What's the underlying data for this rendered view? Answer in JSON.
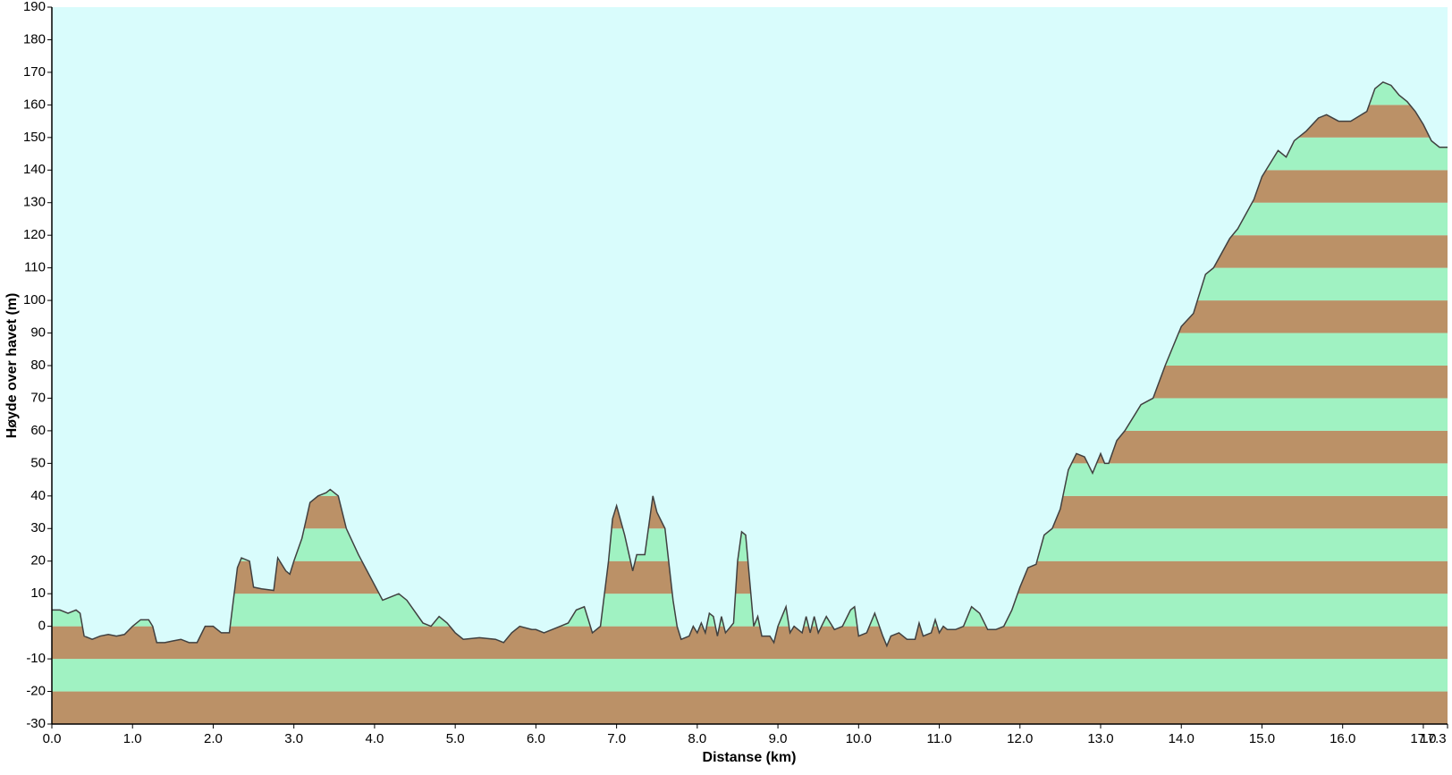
{
  "chart_data": {
    "type": "area",
    "xlabel": "Distanse   (km)",
    "ylabel": "Høyde over havet (m)",
    "background": "#d9fcfc",
    "band_colors": [
      "#bb9167",
      "#a0f2c2"
    ],
    "line_color": "#404040",
    "x": [
      0.0,
      0.1,
      0.2,
      0.3,
      0.35,
      0.4,
      0.5,
      0.6,
      0.7,
      0.8,
      0.9,
      1.0,
      1.1,
      1.2,
      1.25,
      1.3,
      1.4,
      1.5,
      1.6,
      1.7,
      1.8,
      1.9,
      2.0,
      2.1,
      2.2,
      2.3,
      2.35,
      2.45,
      2.5,
      2.6,
      2.75,
      2.8,
      2.9,
      2.95,
      3.0,
      3.1,
      3.2,
      3.3,
      3.4,
      3.45,
      3.55,
      3.65,
      3.8,
      3.95,
      4.1,
      4.3,
      4.4,
      4.6,
      4.7,
      4.8,
      4.9,
      5.0,
      5.1,
      5.3,
      5.5,
      5.6,
      5.7,
      5.8,
      5.95,
      6.0,
      6.1,
      6.2,
      6.3,
      6.4,
      6.5,
      6.6,
      6.7,
      6.8,
      6.9,
      6.95,
      7.0,
      7.1,
      7.2,
      7.25,
      7.35,
      7.45,
      7.5,
      7.6,
      7.7,
      7.75,
      7.8,
      7.9,
      7.95,
      8.0,
      8.05,
      8.1,
      8.15,
      8.2,
      8.25,
      8.3,
      8.35,
      8.45,
      8.5,
      8.55,
      8.6,
      8.7,
      8.75,
      8.8,
      8.9,
      8.95,
      9.0,
      9.1,
      9.15,
      9.2,
      9.3,
      9.35,
      9.4,
      9.45,
      9.5,
      9.6,
      9.7,
      9.8,
      9.9,
      9.95,
      10.0,
      10.1,
      10.2,
      10.3,
      10.35,
      10.4,
      10.5,
      10.6,
      10.7,
      10.75,
      10.8,
      10.9,
      10.95,
      11.0,
      11.05,
      11.1,
      11.2,
      11.3,
      11.4,
      11.5,
      11.6,
      11.7,
      11.8,
      11.9,
      12.0,
      12.1,
      12.2,
      12.3,
      12.4,
      12.5,
      12.6,
      12.7,
      12.8,
      12.9,
      13.0,
      13.05,
      13.1,
      13.2,
      13.3,
      13.5,
      13.65,
      13.8,
      13.9,
      14.0,
      14.15,
      14.3,
      14.4,
      14.6,
      14.7,
      14.9,
      15.0,
      15.1,
      15.2,
      15.3,
      15.4,
      15.55,
      15.7,
      15.8,
      15.95,
      16.1,
      16.3,
      16.4,
      16.5,
      16.6,
      16.7,
      16.8,
      16.9,
      17.0,
      17.1,
      17.2,
      17.3
    ],
    "series": [
      {
        "name": "Høyde",
        "values": [
          5,
          5,
          4,
          5,
          4,
          -3,
          -4,
          -3,
          -2.5,
          -3,
          -2.5,
          0,
          2,
          2,
          0,
          -5,
          -5,
          -4.5,
          -4,
          -5,
          -5,
          0,
          0,
          -2,
          -2,
          18,
          21,
          20,
          12,
          11.5,
          11,
          21,
          17,
          16,
          20,
          27,
          38,
          40,
          41,
          42,
          40,
          30,
          22,
          15,
          8,
          10,
          8,
          1,
          0,
          3,
          1,
          -2,
          -4,
          -3.5,
          -4,
          -5,
          -2,
          0,
          -1,
          -1,
          -2,
          -1,
          0,
          1,
          5,
          6,
          -2,
          0,
          20,
          33,
          37,
          28,
          17,
          22,
          22,
          40,
          35,
          30,
          8,
          0,
          -4,
          -3,
          0,
          -2,
          1,
          -2,
          4,
          3,
          -3,
          3,
          -2,
          1,
          20,
          29,
          28,
          0,
          3,
          -3,
          -3,
          -5,
          0,
          6,
          -2,
          0,
          -2,
          3,
          -2,
          3,
          -2,
          3,
          -1,
          0,
          5,
          6,
          -3,
          -2,
          4,
          -3,
          -6,
          -3,
          -2,
          -4,
          -4,
          1,
          -3,
          -2,
          2,
          -2,
          0,
          -1,
          -1,
          0,
          6,
          4,
          -1,
          -1,
          0,
          5,
          12,
          18,
          19,
          28,
          30,
          36,
          48,
          53,
          52,
          47,
          53,
          50,
          50,
          57,
          60,
          68,
          70,
          80,
          86,
          92,
          96,
          108,
          110,
          119,
          122,
          131,
          138,
          142,
          146,
          144,
          149,
          152,
          156,
          157,
          155,
          155,
          158,
          165,
          167,
          166,
          163,
          161,
          158,
          154,
          149,
          147,
          147
        ]
      }
    ],
    "xlim": [
      0,
      17.3
    ],
    "ylim": [
      -30,
      190
    ],
    "xticks": [
      {
        "value": 0,
        "label": "0.0"
      },
      {
        "value": 1,
        "label": "1.0"
      },
      {
        "value": 2,
        "label": "2.0"
      },
      {
        "value": 3,
        "label": "3.0"
      },
      {
        "value": 4,
        "label": "4.0"
      },
      {
        "value": 5,
        "label": "5.0"
      },
      {
        "value": 6,
        "label": "6.0"
      },
      {
        "value": 7,
        "label": "7.0"
      },
      {
        "value": 8,
        "label": "8.0"
      },
      {
        "value": 9,
        "label": "9.0"
      },
      {
        "value": 10,
        "label": "10.0"
      },
      {
        "value": 11,
        "label": "11.0"
      },
      {
        "value": 12,
        "label": "12.0"
      },
      {
        "value": 13,
        "label": "13.0"
      },
      {
        "value": 14,
        "label": "14.0"
      },
      {
        "value": 15,
        "label": "15.0"
      },
      {
        "value": 16,
        "label": "16.0"
      },
      {
        "value": 17,
        "label": "17.0"
      },
      17.3
    ],
    "yticks": [
      -30,
      -20,
      -10,
      0,
      10,
      20,
      30,
      40,
      50,
      60,
      70,
      80,
      90,
      100,
      110,
      120,
      130,
      140,
      150,
      160,
      170,
      180,
      190
    ]
  }
}
